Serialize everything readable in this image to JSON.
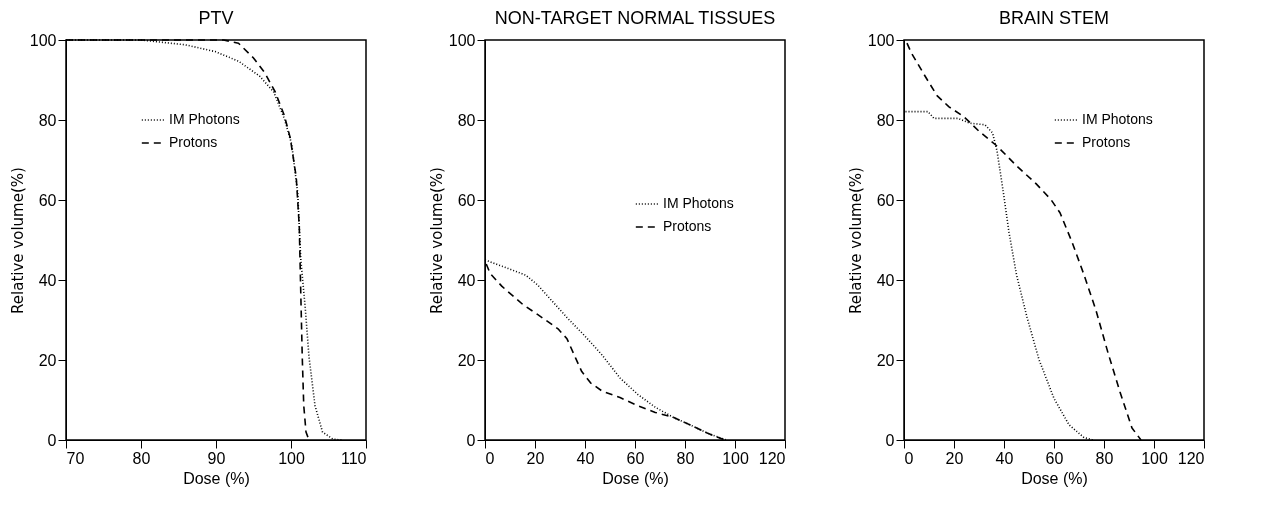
{
  "chart_data": [
    {
      "type": "line",
      "title": "PTV",
      "xlabel": "Dose (%)",
      "ylabel": "Relative volume(%)",
      "xlim": [
        70,
        110
      ],
      "xticks": [
        70,
        80,
        90,
        100,
        110
      ],
      "ylim": [
        0,
        100
      ],
      "yticks": [
        0,
        20,
        40,
        60,
        80,
        100
      ],
      "grid": false,
      "legend": "top",
      "marker": "none",
      "series": [
        {
          "name": "IM Photons",
          "color": "#000000",
          "line_style": "dotted",
          "x": [
            70,
            80,
            85.9,
            89.9,
            93,
            95.8,
            97.7,
            99.1,
            100.1,
            100.9,
            101.3,
            101.9,
            102.4,
            103.2,
            104.2,
            105.6,
            106.8
          ],
          "values": [
            100,
            100,
            98.8,
            97.1,
            94.7,
            91,
            87,
            80.4,
            73.9,
            61.6,
            45.3,
            33,
            20.8,
            8.6,
            2,
            0.2,
            0
          ]
        },
        {
          "name": "Protons",
          "color": "#000000",
          "line_style": "dashed",
          "x": [
            70,
            91,
            93,
            95,
            96.5,
            97.9,
            99.1,
            99.9,
            100.7,
            101.1,
            101.3,
            101.5,
            101.7,
            102,
            102.4
          ],
          "values": [
            100,
            100,
            99.2,
            95.5,
            91.8,
            87,
            81.2,
            75.5,
            65.7,
            53.5,
            37,
            20.8,
            8.6,
            2,
            0
          ]
        }
      ]
    },
    {
      "type": "line",
      "title": "NON-TARGET NORMAL TISSUES",
      "xlabel": "Dose (%)",
      "ylabel": "Relative volume(%)",
      "xlim": [
        0,
        120
      ],
      "xticks": [
        0,
        20,
        40,
        60,
        80,
        100,
        120
      ],
      "ylim": [
        0,
        100
      ],
      "yticks": [
        0,
        20,
        40,
        60,
        80,
        100
      ],
      "grid": false,
      "legend": "right",
      "marker": "none",
      "series": [
        {
          "name": "IM Photons",
          "color": "#000000",
          "line_style": "dotted",
          "x": [
            0,
            9.2,
            16.3,
            21,
            26.9,
            32.8,
            39.8,
            46.9,
            54,
            61.1,
            68.1,
            75.2,
            82.3,
            89.4,
            96.5
          ],
          "values": [
            45,
            42.9,
            41.2,
            38.8,
            34.7,
            30.6,
            26.1,
            21.2,
            15.5,
            11.4,
            8.2,
            5.7,
            3.7,
            1.6,
            0
          ]
        },
        {
          "name": "Protons",
          "color": "#000000",
          "line_style": "dashed",
          "x": [
            0.5,
            2.1,
            6.8,
            15.1,
            21,
            29.2,
            32.8,
            36.3,
            38.7,
            42.2,
            46.9,
            54,
            61.1,
            68.1,
            75.2,
            82.3,
            89.4,
            95.9
          ],
          "values": [
            44,
            41.6,
            38.4,
            33.9,
            31.4,
            27.8,
            25.3,
            20.4,
            17.1,
            14.3,
            12.2,
            10.6,
            8.6,
            6.9,
            5.7,
            3.7,
            1.6,
            0
          ]
        }
      ]
    },
    {
      "type": "line",
      "title": "BRAIN STEM",
      "xlabel": "Dose (%)",
      "ylabel": "Relative volume(%)",
      "xlim": [
        0,
        120
      ],
      "xticks": [
        0,
        20,
        40,
        60,
        80,
        100,
        120
      ],
      "ylim": [
        0,
        100
      ],
      "yticks": [
        0,
        20,
        40,
        60,
        80,
        100
      ],
      "grid": false,
      "legend": "top right",
      "marker": "none",
      "series": [
        {
          "name": "IM Photons",
          "color": "#000000",
          "line_style": "dotted",
          "x": [
            0.6,
            9.6,
            12,
            21.6,
            26.4,
            32.4,
            35.4,
            37.2,
            39.6,
            42,
            45,
            49.2,
            54,
            60,
            66,
            72,
            75.6
          ],
          "values": [
            82.1,
            82.1,
            80.4,
            80.4,
            79.2,
            78.8,
            76.8,
            72.3,
            62.5,
            51.9,
            41.3,
            30.7,
            20.1,
            10.4,
            3.8,
            0.6,
            0
          ]
        },
        {
          "name": "Protons",
          "color": "#000000",
          "line_style": "dashed",
          "x": [
            1.2,
            3,
            8.4,
            13.2,
            18,
            24,
            30,
            37.2,
            45.6,
            52.8,
            58.8,
            62.4,
            67.2,
            72,
            76.8,
            81.6,
            86.4,
            91.2,
            94.8
          ],
          "values": [
            99.2,
            96.7,
            91,
            86.1,
            83.3,
            80.8,
            77.2,
            73.5,
            68.2,
            64.1,
            60.1,
            56.8,
            49.5,
            41.3,
            32.4,
            21.8,
            12,
            3,
            0
          ]
        }
      ]
    }
  ]
}
